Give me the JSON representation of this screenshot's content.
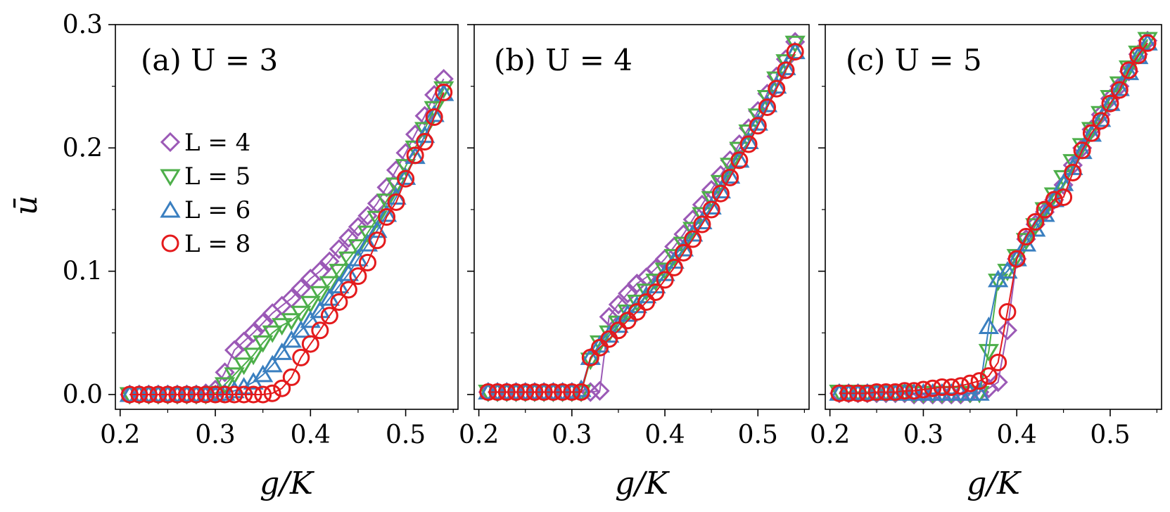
{
  "chart_data": [
    {
      "type": "line",
      "panel_label": "(a) U = 3",
      "xlabel": "g/K",
      "ylabel": "ū",
      "xlim": [
        0.195,
        0.555
      ],
      "ylim": [
        -0.012,
        0.3
      ],
      "xticks": [
        0.2,
        0.3,
        0.4,
        0.5
      ],
      "xtick_labels": [
        "0.2",
        "0.3",
        "0.4",
        "0.5"
      ],
      "yticks": [
        0.0,
        0.1,
        0.2,
        0.3
      ],
      "ytick_labels": [
        "0.0",
        "0.1",
        "0.2",
        "0.3"
      ],
      "legend_position": "upper-left",
      "series": [
        {
          "name": "L = 4",
          "marker": "diamond",
          "color": "#9b59b6",
          "x": [
            0.21,
            0.22,
            0.23,
            0.24,
            0.25,
            0.26,
            0.27,
            0.28,
            0.29,
            0.3,
            0.31,
            0.32,
            0.33,
            0.34,
            0.35,
            0.36,
            0.37,
            0.38,
            0.39,
            0.4,
            0.41,
            0.42,
            0.43,
            0.44,
            0.45,
            0.46,
            0.47,
            0.48,
            0.49,
            0.5,
            0.51,
            0.52,
            0.53,
            0.54
          ],
          "y": [
            0,
            0,
            0,
            0,
            0,
            0,
            0,
            0,
            0.001,
            0.004,
            0.018,
            0.036,
            0.043,
            0.05,
            0.058,
            0.066,
            0.072,
            0.078,
            0.086,
            0.094,
            0.1,
            0.108,
            0.118,
            0.127,
            0.136,
            0.145,
            0.155,
            0.168,
            0.182,
            0.196,
            0.211,
            0.226,
            0.243,
            0.256
          ]
        },
        {
          "name": "L = 5",
          "marker": "triangle-down",
          "color": "#4daf4a",
          "x": [
            0.21,
            0.22,
            0.23,
            0.24,
            0.25,
            0.26,
            0.27,
            0.28,
            0.29,
            0.3,
            0.31,
            0.32,
            0.33,
            0.34,
            0.35,
            0.36,
            0.37,
            0.38,
            0.39,
            0.4,
            0.41,
            0.42,
            0.43,
            0.44,
            0.45,
            0.46,
            0.47,
            0.48,
            0.49,
            0.5,
            0.51,
            0.52,
            0.53,
            0.54
          ],
          "y": [
            0,
            0,
            0,
            0,
            0,
            0,
            0,
            0,
            0,
            0.001,
            0.008,
            0.016,
            0.024,
            0.032,
            0.042,
            0.05,
            0.056,
            0.06,
            0.066,
            0.074,
            0.082,
            0.09,
            0.1,
            0.11,
            0.12,
            0.131,
            0.143,
            0.157,
            0.17,
            0.185,
            0.2,
            0.215,
            0.232,
            0.248
          ]
        },
        {
          "name": "L = 6",
          "marker": "triangle-up",
          "color": "#3a7fc0",
          "x": [
            0.21,
            0.22,
            0.23,
            0.24,
            0.25,
            0.26,
            0.27,
            0.28,
            0.29,
            0.3,
            0.31,
            0.32,
            0.33,
            0.34,
            0.35,
            0.36,
            0.37,
            0.38,
            0.39,
            0.4,
            0.41,
            0.42,
            0.43,
            0.44,
            0.45,
            0.46,
            0.47,
            0.48,
            0.49,
            0.5,
            0.51,
            0.52,
            0.53,
            0.54
          ],
          "y": [
            0,
            0,
            0,
            0,
            0,
            0,
            0,
            0,
            0,
            0,
            0.001,
            0.003,
            0.006,
            0.01,
            0.016,
            0.024,
            0.034,
            0.044,
            0.052,
            0.06,
            0.068,
            0.078,
            0.088,
            0.098,
            0.11,
            0.122,
            0.133,
            0.146,
            0.16,
            0.176,
            0.193,
            0.21,
            0.227,
            0.244
          ]
        },
        {
          "name": "L = 8",
          "marker": "circle",
          "color": "#e41a1c",
          "x": [
            0.21,
            0.22,
            0.23,
            0.24,
            0.25,
            0.26,
            0.27,
            0.28,
            0.29,
            0.3,
            0.31,
            0.32,
            0.33,
            0.34,
            0.35,
            0.36,
            0.37,
            0.38,
            0.39,
            0.4,
            0.41,
            0.42,
            0.43,
            0.44,
            0.45,
            0.46,
            0.47,
            0.48,
            0.49,
            0.5,
            0.51,
            0.52,
            0.53,
            0.54
          ],
          "y": [
            0,
            0,
            0,
            0,
            0,
            0,
            0,
            0,
            0,
            0,
            0,
            0,
            0,
            0,
            0,
            0.001,
            0.005,
            0.014,
            0.03,
            0.041,
            0.052,
            0.064,
            0.075,
            0.085,
            0.096,
            0.107,
            0.125,
            0.144,
            0.156,
            0.175,
            0.194,
            0.205,
            0.225,
            0.245
          ]
        }
      ]
    },
    {
      "type": "line",
      "panel_label": "(b) U = 4",
      "xlabel": "g/K",
      "xlim": [
        0.195,
        0.555
      ],
      "ylim": [
        -0.012,
        0.3
      ],
      "xticks": [
        0.2,
        0.3,
        0.4,
        0.5
      ],
      "xtick_labels": [
        "0.2",
        "0.3",
        "0.4",
        "0.5"
      ],
      "yticks": [
        0.0,
        0.1,
        0.2,
        0.3
      ],
      "series": [
        {
          "name": "L = 4",
          "marker": "diamond",
          "color": "#9b59b6",
          "x": [
            0.21,
            0.22,
            0.23,
            0.24,
            0.25,
            0.26,
            0.27,
            0.28,
            0.29,
            0.3,
            0.31,
            0.32,
            0.33,
            0.34,
            0.35,
            0.36,
            0.37,
            0.38,
            0.39,
            0.4,
            0.41,
            0.42,
            0.43,
            0.44,
            0.45,
            0.46,
            0.47,
            0.48,
            0.49,
            0.5,
            0.51,
            0.52,
            0.53,
            0.54
          ],
          "y": [
            0.002,
            0.002,
            0.002,
            0.002,
            0.002,
            0.002,
            0.002,
            0.002,
            0.002,
            0.002,
            0.002,
            0.002,
            0.003,
            0.063,
            0.073,
            0.082,
            0.09,
            0.095,
            0.102,
            0.11,
            0.12,
            0.13,
            0.142,
            0.154,
            0.166,
            0.178,
            0.19,
            0.203,
            0.216,
            0.23,
            0.244,
            0.258,
            0.272,
            0.286
          ]
        },
        {
          "name": "L = 5",
          "marker": "triangle-down",
          "color": "#4daf4a",
          "x": [
            0.21,
            0.22,
            0.23,
            0.24,
            0.25,
            0.26,
            0.27,
            0.28,
            0.29,
            0.3,
            0.31,
            0.32,
            0.33,
            0.34,
            0.35,
            0.36,
            0.37,
            0.38,
            0.39,
            0.4,
            0.41,
            0.42,
            0.43,
            0.44,
            0.45,
            0.46,
            0.47,
            0.48,
            0.49,
            0.5,
            0.51,
            0.52,
            0.53,
            0.54
          ],
          "y": [
            0.002,
            0.002,
            0.002,
            0.002,
            0.002,
            0.002,
            0.002,
            0.002,
            0.002,
            0.002,
            0.002,
            0.028,
            0.042,
            0.05,
            0.058,
            0.067,
            0.075,
            0.084,
            0.092,
            0.101,
            0.112,
            0.122,
            0.134,
            0.146,
            0.159,
            0.172,
            0.186,
            0.199,
            0.213,
            0.226,
            0.241,
            0.256,
            0.27,
            0.285
          ]
        },
        {
          "name": "L = 6",
          "marker": "triangle-up",
          "color": "#3a7fc0",
          "x": [
            0.21,
            0.22,
            0.23,
            0.24,
            0.25,
            0.26,
            0.27,
            0.28,
            0.29,
            0.3,
            0.31,
            0.32,
            0.33,
            0.34,
            0.35,
            0.36,
            0.37,
            0.38,
            0.39,
            0.4,
            0.41,
            0.42,
            0.43,
            0.44,
            0.45,
            0.46,
            0.47,
            0.48,
            0.49,
            0.5,
            0.51,
            0.52,
            0.53,
            0.54
          ],
          "y": [
            0.002,
            0.002,
            0.002,
            0.002,
            0.002,
            0.002,
            0.002,
            0.002,
            0.002,
            0.002,
            0.004,
            0.03,
            0.04,
            0.048,
            0.056,
            0.065,
            0.072,
            0.08,
            0.088,
            0.098,
            0.108,
            0.118,
            0.13,
            0.14,
            0.152,
            0.165,
            0.177,
            0.19,
            0.205,
            0.22,
            0.235,
            0.25,
            0.265,
            0.278
          ]
        },
        {
          "name": "L = 8",
          "marker": "circle",
          "color": "#e41a1c",
          "x": [
            0.21,
            0.22,
            0.23,
            0.24,
            0.25,
            0.26,
            0.27,
            0.28,
            0.29,
            0.3,
            0.31,
            0.32,
            0.33,
            0.34,
            0.35,
            0.36,
            0.37,
            0.38,
            0.39,
            0.4,
            0.41,
            0.42,
            0.43,
            0.44,
            0.45,
            0.46,
            0.47,
            0.48,
            0.49,
            0.5,
            0.51,
            0.52,
            0.53,
            0.54
          ],
          "y": [
            0.002,
            0.002,
            0.002,
            0.002,
            0.002,
            0.002,
            0.002,
            0.002,
            0.002,
            0.002,
            0.002,
            0.03,
            0.038,
            0.045,
            0.052,
            0.06,
            0.067,
            0.075,
            0.083,
            0.093,
            0.103,
            0.115,
            0.126,
            0.138,
            0.15,
            0.163,
            0.176,
            0.19,
            0.203,
            0.218,
            0.233,
            0.248,
            0.263,
            0.278
          ]
        }
      ]
    },
    {
      "type": "line",
      "panel_label": "(c) U = 5",
      "xlabel": "g/K",
      "xlim": [
        0.195,
        0.555
      ],
      "ylim": [
        -0.012,
        0.3
      ],
      "xticks": [
        0.2,
        0.3,
        0.4,
        0.5
      ],
      "xtick_labels": [
        "0.2",
        "0.3",
        "0.4",
        "0.5"
      ],
      "yticks": [
        0.0,
        0.1,
        0.2,
        0.3
      ],
      "series": [
        {
          "name": "L = 4",
          "marker": "diamond",
          "color": "#9b59b6",
          "x": [
            0.21,
            0.22,
            0.23,
            0.24,
            0.25,
            0.26,
            0.27,
            0.28,
            0.29,
            0.3,
            0.31,
            0.32,
            0.33,
            0.34,
            0.35,
            0.36,
            0.37,
            0.38,
            0.39,
            0.4,
            0.41,
            0.42,
            0.43,
            0.44,
            0.45,
            0.46,
            0.47,
            0.48,
            0.49,
            0.5,
            0.51,
            0.52,
            0.53,
            0.54
          ],
          "y": [
            0.001,
            0.001,
            0.001,
            0.001,
            0.001,
            0.001,
            0.001,
            0.001,
            0.0,
            0.0,
            0.0,
            0.0,
            0.0,
            0.0,
            0.001,
            0.002,
            0.005,
            0.01,
            0.052,
            0.11,
            0.126,
            0.138,
            0.148,
            0.158,
            0.17,
            0.186,
            0.2,
            0.215,
            0.227,
            0.24,
            0.25,
            0.262,
            0.276,
            0.287
          ]
        },
        {
          "name": "L = 5",
          "marker": "triangle-down",
          "color": "#4daf4a",
          "x": [
            0.21,
            0.22,
            0.23,
            0.24,
            0.25,
            0.26,
            0.27,
            0.28,
            0.29,
            0.3,
            0.31,
            0.32,
            0.33,
            0.34,
            0.35,
            0.36,
            0.37,
            0.38,
            0.39,
            0.4,
            0.41,
            0.42,
            0.43,
            0.44,
            0.45,
            0.46,
            0.47,
            0.48,
            0.49,
            0.5,
            0.51,
            0.52,
            0.53,
            0.54
          ],
          "y": [
            0.002,
            0.002,
            0.002,
            0.002,
            0.002,
            0.002,
            0.002,
            0.002,
            0.001,
            0.001,
            0.001,
            0.001,
            0.001,
            0.001,
            0.001,
            0.001,
            0.035,
            0.092,
            0.1,
            0.112,
            0.125,
            0.137,
            0.15,
            0.162,
            0.176,
            0.189,
            0.202,
            0.215,
            0.228,
            0.241,
            0.252,
            0.265,
            0.277,
            0.288
          ]
        },
        {
          "name": "L = 6",
          "marker": "triangle-up",
          "color": "#3a7fc0",
          "x": [
            0.21,
            0.22,
            0.23,
            0.24,
            0.25,
            0.26,
            0.27,
            0.28,
            0.29,
            0.3,
            0.31,
            0.32,
            0.33,
            0.34,
            0.35,
            0.36,
            0.37,
            0.38,
            0.39,
            0.4,
            0.41,
            0.42,
            0.43,
            0.44,
            0.45,
            0.46,
            0.47,
            0.48,
            0.49,
            0.5,
            0.51,
            0.52,
            0.53,
            0.54
          ],
          "y": [
            0.001,
            0.001,
            0.001,
            0.001,
            0.001,
            0.001,
            0.001,
            0.001,
            0.001,
            0.001,
            0.001,
            0.001,
            0.001,
            0.001,
            0.001,
            0.001,
            0.055,
            0.093,
            0.1,
            0.11,
            0.122,
            0.134,
            0.146,
            0.158,
            0.171,
            0.184,
            0.197,
            0.211,
            0.223,
            0.236,
            0.248,
            0.261,
            0.274,
            0.285
          ]
        },
        {
          "name": "L = 8",
          "marker": "circle",
          "color": "#e41a1c",
          "x": [
            0.21,
            0.22,
            0.23,
            0.24,
            0.25,
            0.26,
            0.27,
            0.28,
            0.29,
            0.3,
            0.31,
            0.32,
            0.33,
            0.34,
            0.35,
            0.36,
            0.37,
            0.38,
            0.39,
            0.4,
            0.41,
            0.42,
            0.43,
            0.44,
            0.45,
            0.46,
            0.47,
            0.48,
            0.49,
            0.5,
            0.51,
            0.52,
            0.53,
            0.54
          ],
          "y": [
            0.001,
            0.001,
            0.001,
            0.001,
            0.002,
            0.002,
            0.002,
            0.003,
            0.003,
            0.004,
            0.005,
            0.006,
            0.006,
            0.007,
            0.009,
            0.011,
            0.015,
            0.026,
            0.067,
            0.11,
            0.128,
            0.14,
            0.15,
            0.158,
            0.16,
            0.18,
            0.198,
            0.212,
            0.222,
            0.236,
            0.247,
            0.263,
            0.275,
            0.285
          ]
        }
      ]
    }
  ]
}
